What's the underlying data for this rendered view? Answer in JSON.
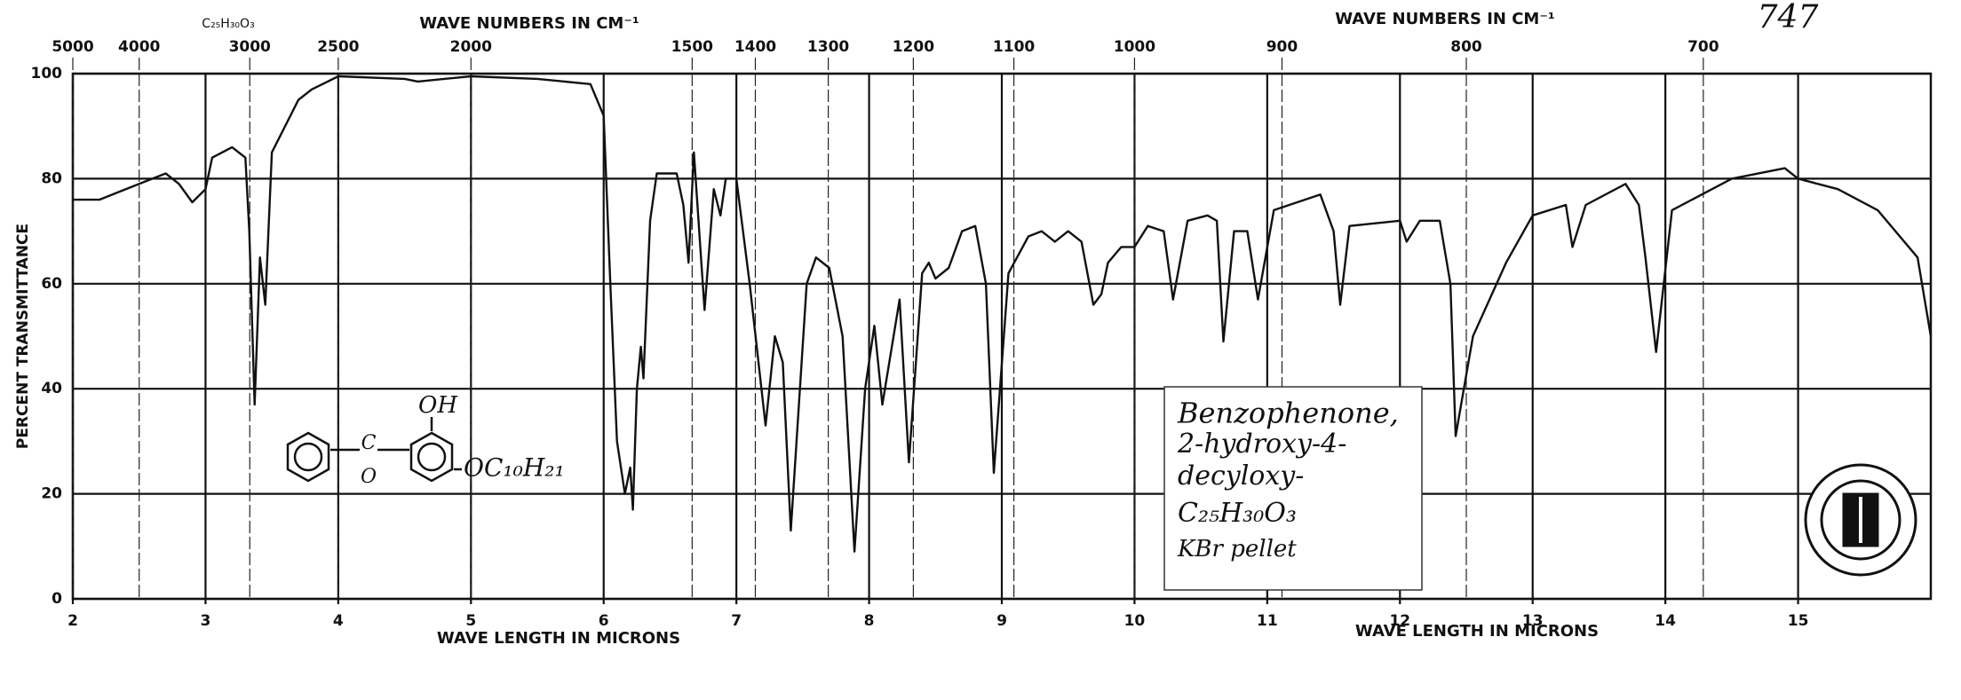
{
  "chart_data": {
    "type": "line",
    "page_number": "747",
    "formula_header": "C₂₅H₃₀O₃",
    "x2_label": "WAVE NUMBERS IN CM⁻¹",
    "xlabel": "WAVE LENGTH IN MICRONS",
    "ylabel": "PERCENT TRANSMITTANCE",
    "annotation": [
      "Benzophenone,",
      "2-hydroxy-4-",
      "decyloxy-",
      "C₂₅H₃₀O₃",
      "KBr pellet"
    ],
    "structure_labels": [
      "OH",
      "C",
      "O",
      "OC₁₀H₂₁"
    ],
    "xlim": [
      2,
      16
    ],
    "ylim": [
      0,
      100
    ],
    "xticks": [
      2,
      3,
      4,
      5,
      6,
      7,
      8,
      9,
      10,
      11,
      12,
      13,
      14,
      15
    ],
    "yticks": [
      0,
      20,
      40,
      60,
      80,
      100
    ],
    "x2ticks": [
      5000,
      4000,
      3000,
      2500,
      2000,
      1500,
      1400,
      1300,
      1200,
      1100,
      1000,
      900,
      800,
      700
    ],
    "grid": true,
    "color": "#111111",
    "x": [
      2.0,
      2.2,
      2.5,
      2.7,
      2.8,
      2.9,
      3.0,
      3.05,
      3.2,
      3.3,
      3.33,
      3.37,
      3.41,
      3.45,
      3.5,
      3.7,
      3.8,
      4.0,
      4.5,
      4.6,
      5.0,
      5.5,
      5.9,
      6.0,
      6.05,
      6.1,
      6.16,
      6.2,
      6.22,
      6.25,
      6.28,
      6.3,
      6.35,
      6.4,
      6.55,
      6.6,
      6.64,
      6.68,
      6.76,
      6.83,
      6.88,
      6.92,
      7.0,
      7.1,
      7.22,
      7.29,
      7.35,
      7.41,
      7.53,
      7.6,
      7.7,
      7.8,
      7.89,
      7.97,
      8.04,
      8.1,
      8.23,
      8.3,
      8.4,
      8.45,
      8.5,
      8.6,
      8.7,
      8.8,
      8.88,
      8.94,
      9.05,
      9.2,
      9.3,
      9.4,
      9.5,
      9.6,
      9.69,
      9.75,
      9.8,
      9.9,
      10.0,
      10.1,
      10.22,
      10.29,
      10.4,
      10.55,
      10.62,
      10.67,
      10.75,
      10.85,
      10.93,
      11.05,
      11.4,
      11.5,
      11.55,
      11.62,
      12.0,
      12.05,
      12.15,
      12.3,
      12.38,
      12.42,
      12.55,
      12.8,
      13.0,
      13.25,
      13.3,
      13.4,
      13.7,
      13.8,
      13.85,
      13.93,
      14.05,
      14.5,
      14.9,
      15.0,
      15.3,
      15.6,
      15.9,
      16.0
    ],
    "values": [
      76,
      76,
      79,
      81,
      79,
      75.5,
      78,
      84,
      86,
      84,
      70,
      37,
      65,
      56,
      85,
      95,
      97,
      99.5,
      99,
      98.5,
      99.5,
      99,
      98,
      92,
      60,
      30,
      20,
      25,
      17,
      40,
      48,
      42,
      72,
      81,
      81,
      75,
      64,
      85,
      55,
      78,
      73,
      80,
      80,
      60,
      33,
      50,
      45,
      13,
      60,
      65,
      63,
      50,
      9,
      40,
      52,
      37,
      57,
      26,
      62,
      64,
      61,
      63,
      70,
      71,
      60,
      24,
      62,
      69,
      70,
      68,
      70,
      68,
      56,
      58,
      64,
      67,
      67,
      71,
      70,
      57,
      72,
      73,
      72,
      49,
      70,
      70,
      57,
      74,
      77,
      70,
      56,
      71,
      72,
      68,
      72,
      72,
      60,
      31,
      50,
      64,
      73,
      75,
      67,
      75,
      79,
      75,
      65,
      47,
      74,
      80,
      82,
      80,
      78,
      74,
      65,
      50
    ]
  }
}
